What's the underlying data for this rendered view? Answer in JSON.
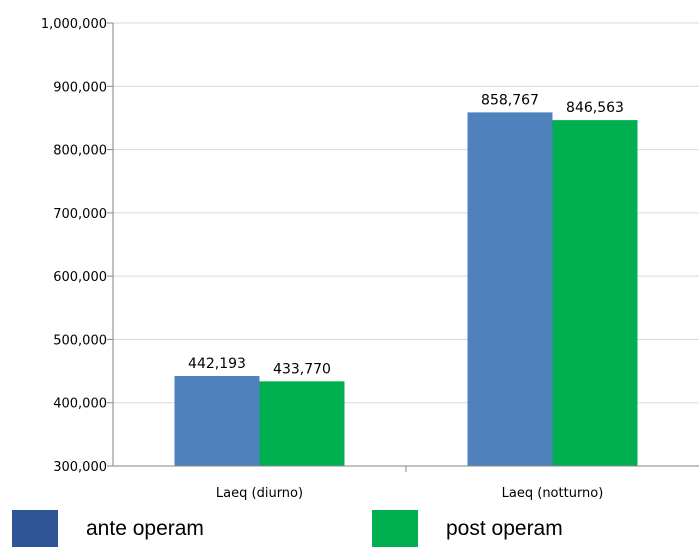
{
  "chart_data": {
    "type": "bar",
    "categories": [
      "Laeq (diurno)",
      "Laeq (notturno)"
    ],
    "series": [
      {
        "name": "ante operam",
        "values": [
          442.193,
          858.767
        ],
        "labels": [
          "442,193",
          "858,767"
        ],
        "color": "#4f81bd"
      },
      {
        "name": "post operam",
        "values": [
          433.77,
          846.563
        ],
        "labels": [
          "433,770",
          "846,563"
        ],
        "color": "#00b050"
      }
    ],
    "ylim": [
      300,
      1000
    ],
    "yticks": [
      300,
      400,
      500,
      600,
      700,
      800,
      900,
      1000
    ],
    "ytick_labels": [
      "300,000",
      "400,000",
      "500,000",
      "600,000",
      "700,000",
      "800,000",
      "900,000",
      "1,000,000"
    ],
    "grid": true,
    "legend_position": "bottom",
    "legend_swatch_colors": [
      "#2e5597",
      "#00b050"
    ],
    "title": "",
    "xlabel": "",
    "ylabel": ""
  }
}
